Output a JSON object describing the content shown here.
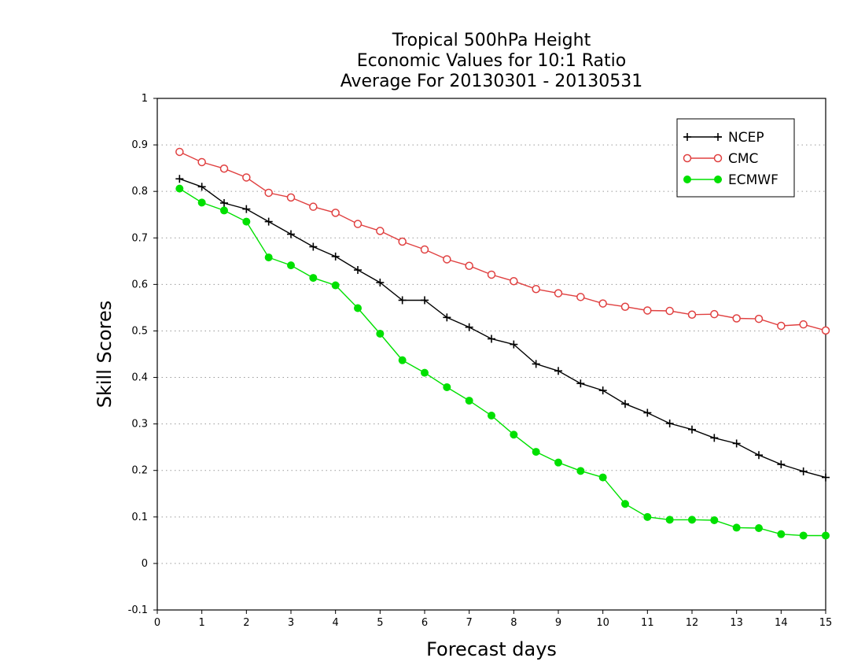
{
  "chart_data": {
    "type": "line",
    "title_lines": [
      "Tropical 500hPa Height",
      "Economic Values for 10:1 Ratio",
      "Average For 20130301 - 20130531"
    ],
    "xlabel": "Forecast days",
    "ylabel": "Skill Scores",
    "xlim": [
      0,
      15
    ],
    "ylim": [
      -0.1,
      1
    ],
    "x_ticks": [
      "0",
      "1",
      "2",
      "3",
      "4",
      "5",
      "6",
      "7",
      "8",
      "9",
      "10",
      "11",
      "12",
      "13",
      "14",
      "15"
    ],
    "y_ticks": [
      "-0.1",
      "0",
      "0.1",
      "0.2",
      "0.3",
      "0.4",
      "0.5",
      "0.6",
      "0.7",
      "0.8",
      "0.9",
      "1"
    ],
    "grid": "horizontal dotted",
    "legend_position": "top-right",
    "x": [
      0.5,
      1,
      1.5,
      2,
      2.5,
      3,
      3.5,
      4,
      4.5,
      5,
      5.5,
      6,
      6.5,
      7,
      7.5,
      8,
      8.5,
      9,
      9.5,
      10,
      10.5,
      11,
      11.5,
      12,
      12.5,
      13,
      13.5,
      14,
      14.5,
      15
    ],
    "series": [
      {
        "name": "NCEP",
        "color": "#000000",
        "marker": "plus",
        "values": [
          0.827,
          0.81,
          0.775,
          0.762,
          0.735,
          0.708,
          0.681,
          0.66,
          0.631,
          0.604,
          0.566,
          0.566,
          0.529,
          0.508,
          0.483,
          0.471,
          0.429,
          0.414,
          0.387,
          0.372,
          0.343,
          0.324,
          0.301,
          0.288,
          0.27,
          0.258,
          0.233,
          0.213,
          0.198,
          0.185
        ]
      },
      {
        "name": "CMC",
        "color": "#e04040",
        "marker": "open-circle",
        "values": [
          0.885,
          0.863,
          0.849,
          0.83,
          0.797,
          0.787,
          0.767,
          0.754,
          0.73,
          0.715,
          0.692,
          0.675,
          0.654,
          0.64,
          0.621,
          0.607,
          0.59,
          0.581,
          0.573,
          0.559,
          0.552,
          0.544,
          0.543,
          0.535,
          0.536,
          0.527,
          0.526,
          0.511,
          0.514,
          0.501
        ]
      },
      {
        "name": "ECMWF",
        "color": "#00e000",
        "marker": "filled-circle",
        "values": [
          0.806,
          0.776,
          0.759,
          0.735,
          0.658,
          0.641,
          0.614,
          0.598,
          0.549,
          0.494,
          0.437,
          0.41,
          0.379,
          0.35,
          0.318,
          0.277,
          0.24,
          0.217,
          0.199,
          0.185,
          0.128,
          0.1,
          0.094,
          0.094,
          0.093,
          0.077,
          0.076,
          0.063,
          0.06,
          0.06
        ]
      }
    ]
  }
}
